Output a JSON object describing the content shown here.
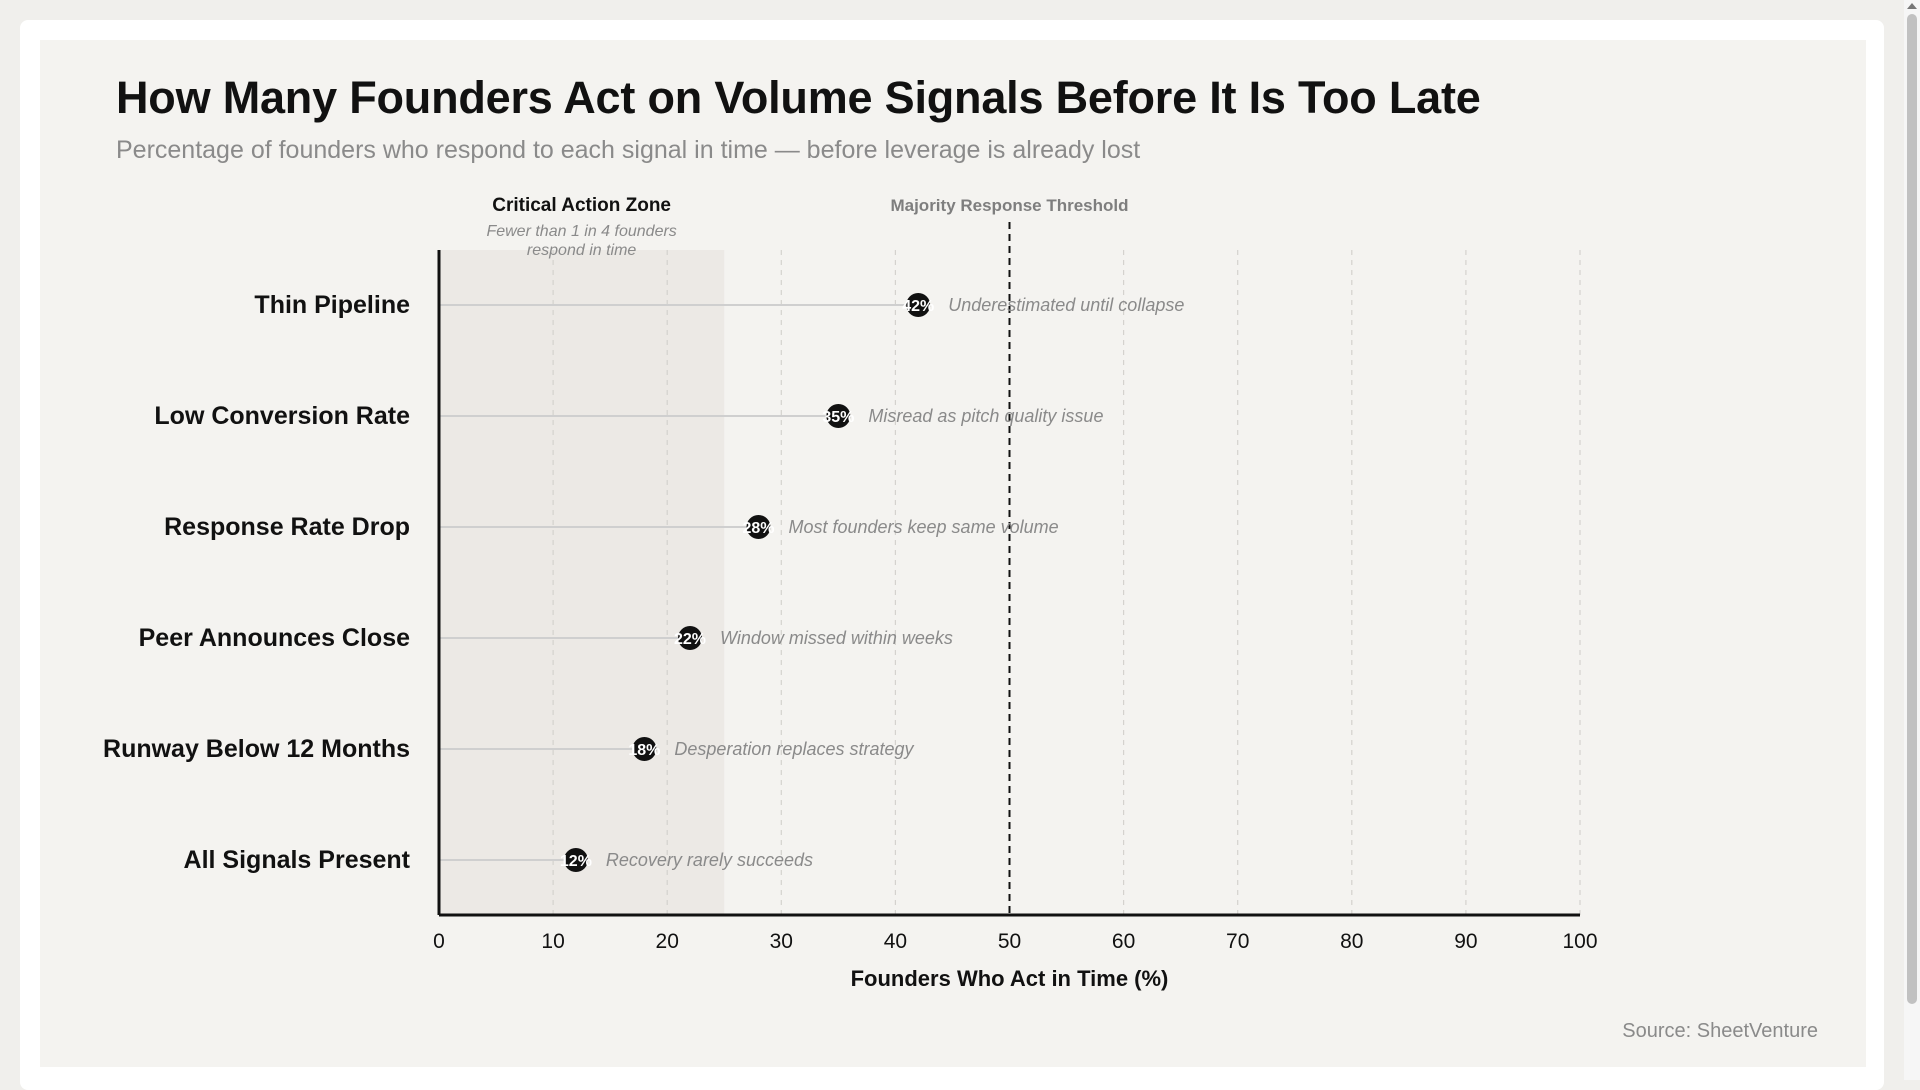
{
  "title": "How Many Founders Act on Volume Signals Before It Is Too Late",
  "subtitle": "Percentage of founders who respond to each signal in time — before leverage is already lost",
  "source": "Source: SheetVenture",
  "colors": {
    "background": "#f4f3f0",
    "zone_fill": "#ece9e5",
    "dot": "#111111",
    "stem": "#cfcfcf",
    "annotation": "#8a8a8a",
    "threshold": "#111111"
  },
  "chart_data": {
    "type": "lollipop",
    "orientation": "horizontal",
    "xlabel": "Founders Who Act in Time (%)",
    "xlim": [
      0,
      100
    ],
    "xticks": [
      0,
      10,
      20,
      30,
      40,
      50,
      60,
      70,
      80,
      90,
      100
    ],
    "grid": "vertical dashed",
    "categories": [
      "Thin Pipeline",
      "Low Conversion Rate",
      "Response Rate Drop",
      "Peer Announces Close",
      "Runway Below 12 Months",
      "All Signals Present"
    ],
    "values": [
      42,
      35,
      28,
      22,
      18,
      12
    ],
    "value_labels": [
      "42%",
      "35%",
      "28%",
      "22%",
      "18%",
      "12%"
    ],
    "annotations": [
      "Underestimated until collapse",
      "Misread as pitch quality issue",
      "Most founders keep same volume",
      "Window missed within weeks",
      "Desperation replaces strategy",
      "Recovery rarely succeeds"
    ],
    "zone": {
      "from": 0,
      "to": 25,
      "title": "Critical Action Zone",
      "note_lines": [
        "Fewer than 1 in 4 founders",
        "respond in time"
      ]
    },
    "threshold": {
      "value": 50,
      "label": "Majority Response Threshold"
    }
  }
}
